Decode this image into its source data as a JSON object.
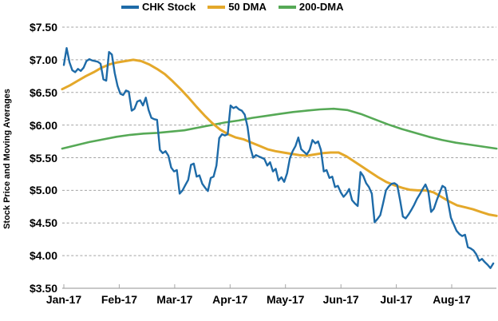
{
  "colors": {
    "grid": "#A3A3A3",
    "axis": "#A6A6A6",
    "text": "#000000",
    "background": "#FFFFFF"
  },
  "chart_data": {
    "type": "line",
    "title": "",
    "xlabel": "",
    "ylabel": "Stock Price and Moving Averages",
    "ylim": [
      3.5,
      7.5
    ],
    "grid": "horizontal-dashed",
    "legend_position": "top-center",
    "y_axis": {
      "ticks": [
        "$7.50",
        "$7.00",
        "$6.50",
        "$6.00",
        "$5.50",
        "$5.00",
        "$4.50",
        "$4.00",
        "$3.50"
      ],
      "values": [
        7.5,
        7.0,
        6.5,
        6.0,
        5.5,
        5.0,
        4.5,
        4.0,
        3.5
      ]
    },
    "x_axis": {
      "ticks": [
        "Jan-17",
        "Feb-17",
        "Mar-17",
        "Apr-17",
        "May-17",
        "Jun-17",
        "Jul-17",
        "Aug-17"
      ]
    },
    "series": [
      {
        "name": "CHK Stock",
        "color": "#1E6BA8",
        "line_width": 2.4,
        "x_start": 0,
        "x_end": 7.75,
        "values": [
          6.92,
          7.18,
          6.96,
          6.84,
          6.81,
          6.86,
          6.83,
          6.88,
          6.98,
          7.01,
          6.99,
          6.98,
          6.97,
          6.94,
          6.7,
          6.68,
          7.12,
          7.08,
          6.8,
          6.6,
          6.48,
          6.46,
          6.53,
          6.51,
          6.22,
          6.25,
          6.36,
          6.38,
          6.3,
          6.42,
          6.23,
          6.11,
          6.09,
          6.08,
          5.62,
          5.57,
          5.6,
          5.53,
          5.35,
          5.29,
          5.31,
          4.95,
          5.0,
          5.08,
          5.16,
          5.39,
          5.41,
          5.21,
          5.23,
          5.1,
          5.04,
          4.99,
          5.19,
          5.21,
          5.38,
          5.8,
          5.86,
          5.84,
          5.86,
          6.3,
          6.26,
          6.28,
          6.24,
          6.22,
          6.16,
          5.98,
          5.66,
          5.5,
          5.54,
          5.52,
          5.5,
          5.48,
          5.38,
          5.43,
          5.29,
          5.33,
          5.15,
          5.2,
          5.13,
          5.26,
          5.49,
          5.6,
          5.68,
          5.81,
          5.63,
          5.59,
          5.55,
          5.62,
          5.77,
          5.72,
          5.75,
          5.62,
          5.29,
          5.31,
          5.19,
          5.21,
          5.05,
          5.07,
          4.97,
          4.9,
          4.95,
          5.02,
          4.85,
          4.8,
          4.76,
          5.28,
          5.22,
          5.11,
          5.05,
          4.95,
          4.51,
          4.56,
          4.62,
          4.8,
          5.0,
          5.06,
          5.1,
          5.11,
          5.08,
          4.85,
          4.6,
          4.57,
          4.63,
          4.7,
          4.78,
          4.87,
          4.94,
          5.02,
          5.09,
          4.98,
          4.67,
          4.72,
          4.85,
          4.96,
          5.07,
          5.04,
          4.82,
          4.58,
          4.48,
          4.38,
          4.33,
          4.3,
          4.32,
          4.13,
          4.11,
          4.08,
          4.02,
          3.92,
          3.95,
          3.9,
          3.86,
          3.81,
          3.88
        ]
      },
      {
        "name": "50 DMA",
        "color": "#E4A82A",
        "line_width": 3,
        "x_start": -0.03,
        "x_end": 7.81,
        "values": [
          6.55,
          6.61,
          6.68,
          6.75,
          6.81,
          6.88,
          6.93,
          6.96,
          6.98,
          7.0,
          6.98,
          6.93,
          6.86,
          6.78,
          6.67,
          6.55,
          6.42,
          6.28,
          6.15,
          6.03,
          5.93,
          5.86,
          5.81,
          5.78,
          5.73,
          5.68,
          5.63,
          5.6,
          5.58,
          5.56,
          5.54,
          5.53,
          5.55,
          5.57,
          5.58,
          5.58,
          5.52,
          5.44,
          5.36,
          5.28,
          5.2,
          5.13,
          5.08,
          5.04,
          5.01,
          5.0,
          5.0,
          4.97,
          4.9,
          4.83,
          4.77,
          4.74,
          4.71,
          4.67,
          4.63,
          4.61
        ]
      },
      {
        "name": "200-DMA",
        "color": "#56A956",
        "line_width": 2.6,
        "x_start": -0.03,
        "x_end": 7.81,
        "values": [
          5.64,
          5.69,
          5.74,
          5.78,
          5.82,
          5.85,
          5.87,
          5.88,
          5.9,
          5.92,
          5.96,
          6.0,
          6.04,
          6.07,
          6.11,
          6.14,
          6.17,
          6.2,
          6.22,
          6.24,
          6.25,
          6.23,
          6.17,
          6.09,
          6.01,
          5.94,
          5.88,
          5.82,
          5.77,
          5.73,
          5.7,
          5.67,
          5.64
        ]
      }
    ]
  }
}
